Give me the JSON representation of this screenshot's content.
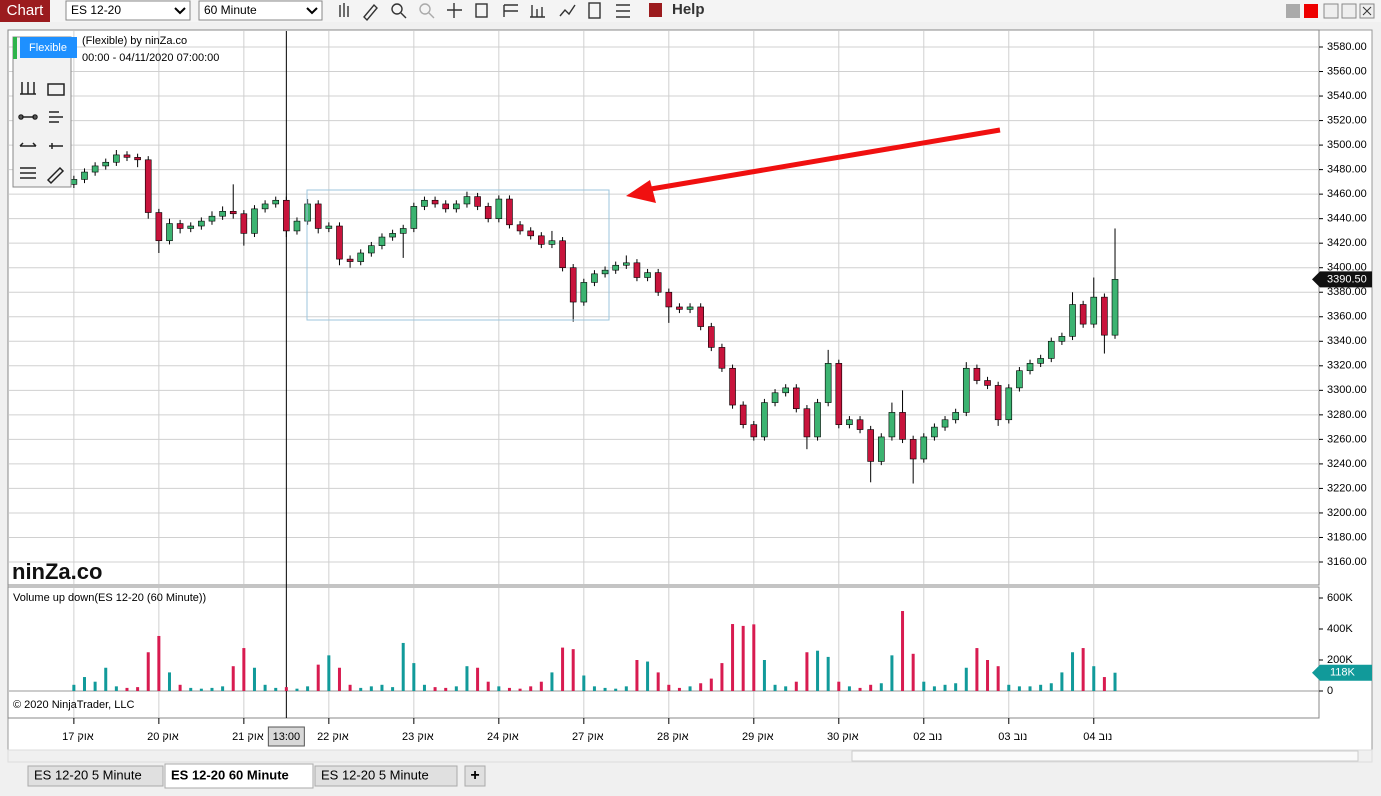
{
  "toolbar": {
    "chart_button": "Chart",
    "instrument": "ES 12-20",
    "interval": "60 Minute",
    "help": "Help"
  },
  "drawing_tools": {
    "button": "Flexible"
  },
  "watermark": "ninZa.co",
  "copyright": "© 2020 NinjaTrader, LLC",
  "tabs": [
    "ES 12-20 5 Minute",
    "ES 12-20 60 Minute",
    "ES 12-20 5 Minute"
  ],
  "new_tab": "+",
  "chart_data": [
    {
      "type": "candlestick",
      "title": "(Flexible) by ninZa.co",
      "subtitle": "00:00 - 04/11/2020 07:00:00",
      "x": [
        0,
        1,
        2,
        3,
        4,
        5,
        6,
        7,
        8,
        9,
        10,
        11,
        12,
        13,
        14,
        15,
        16,
        17,
        18,
        19,
        20,
        21,
        22,
        23,
        24,
        25,
        26,
        27,
        28,
        29,
        30,
        31,
        32,
        33,
        34,
        35,
        36,
        37,
        38,
        39,
        40,
        41,
        42,
        43,
        44,
        45,
        46,
        47,
        48,
        49,
        50,
        51,
        52,
        53,
        54,
        55,
        56,
        57,
        58,
        59,
        60,
        61,
        62,
        63,
        64,
        65,
        66,
        67,
        68,
        69,
        70,
        71,
        72,
        73,
        74,
        75,
        76,
        77,
        78,
        79,
        80,
        81,
        82,
        83,
        84,
        85,
        86,
        87,
        88,
        89,
        90,
        91,
        92,
        93,
        94,
        95,
        96,
        97,
        98
      ],
      "open": [
        3468,
        3472,
        3478,
        3483,
        3486,
        3492,
        3490,
        3488,
        3445,
        3422,
        3436,
        3432,
        3434,
        3438,
        3442,
        3446,
        3444,
        3428,
        3448,
        3452,
        3455,
        3430,
        3438,
        3452,
        3432,
        3434,
        3407,
        3405,
        3412,
        3418,
        3425,
        3428,
        3432,
        3450,
        3455,
        3452,
        3448,
        3452,
        3458,
        3450,
        3440,
        3456,
        3435,
        3430,
        3426,
        3419,
        3422,
        3400,
        3372,
        3388,
        3395,
        3398,
        3402,
        3404,
        3392,
        3396,
        3380,
        3368,
        3366,
        3368,
        3352,
        3335,
        3318,
        3288,
        3272,
        3262,
        3290,
        3298,
        3302,
        3285,
        3262,
        3290,
        3322,
        3272,
        3276,
        3268,
        3242,
        3262,
        3282,
        3260,
        3244,
        3262,
        3270,
        3276,
        3282,
        3318,
        3308,
        3304,
        3276,
        3302,
        3316,
        3322,
        3326,
        3340,
        3344,
        3370,
        3354,
        3376,
        3345
      ],
      "high": [
        3475,
        3481,
        3486,
        3489,
        3496,
        3495,
        3493,
        3491,
        3448,
        3440,
        3439,
        3437,
        3441,
        3446,
        3450,
        3468,
        3447,
        3451,
        3455,
        3458,
        3458,
        3441,
        3456,
        3455,
        3437,
        3437,
        3410,
        3415,
        3421,
        3428,
        3431,
        3435,
        3453,
        3458,
        3458,
        3455,
        3455,
        3462,
        3461,
        3453,
        3459,
        3459,
        3438,
        3433,
        3429,
        3430,
        3425,
        3403,
        3391,
        3398,
        3401,
        3405,
        3410,
        3407,
        3399,
        3399,
        3383,
        3371,
        3371,
        3371,
        3355,
        3338,
        3321,
        3291,
        3275,
        3293,
        3301,
        3305,
        3305,
        3288,
        3293,
        3333,
        3325,
        3279,
        3279,
        3271,
        3265,
        3290,
        3300,
        3263,
        3265,
        3273,
        3279,
        3285,
        3323,
        3321,
        3311,
        3307,
        3305,
        3319,
        3325,
        3329,
        3343,
        3347,
        3380,
        3373,
        3392,
        3379,
        3432
      ],
      "low": [
        3465,
        3469,
        3475,
        3480,
        3483,
        3487,
        3482,
        3440,
        3412,
        3419,
        3428,
        3429,
        3431,
        3435,
        3439,
        3440,
        3418,
        3425,
        3445,
        3449,
        3425,
        3427,
        3435,
        3428,
        3429,
        3402,
        3400,
        3402,
        3409,
        3415,
        3422,
        3408,
        3429,
        3447,
        3449,
        3445,
        3445,
        3449,
        3447,
        3437,
        3437,
        3432,
        3427,
        3423,
        3416,
        3416,
        3397,
        3356,
        3369,
        3385,
        3392,
        3395,
        3399,
        3389,
        3389,
        3377,
        3355,
        3363,
        3363,
        3349,
        3332,
        3315,
        3285,
        3269,
        3259,
        3259,
        3287,
        3295,
        3282,
        3252,
        3259,
        3287,
        3269,
        3269,
        3265,
        3225,
        3239,
        3259,
        3257,
        3224,
        3241,
        3259,
        3267,
        3273,
        3279,
        3305,
        3301,
        3271,
        3273,
        3299,
        3313,
        3319,
        3323,
        3337,
        3341,
        3351,
        3351,
        3330,
        3342
      ],
      "close": [
        3472,
        3478,
        3483,
        3486,
        3492,
        3490,
        3488,
        3445,
        3422,
        3436,
        3432,
        3434,
        3438,
        3442,
        3446,
        3444,
        3428,
        3448,
        3452,
        3455,
        3430,
        3438,
        3452,
        3432,
        3434,
        3407,
        3405,
        3412,
        3418,
        3425,
        3428,
        3432,
        3450,
        3455,
        3452,
        3448,
        3452,
        3458,
        3450,
        3440,
        3456,
        3435,
        3430,
        3426,
        3419,
        3422,
        3400,
        3372,
        3388,
        3395,
        3398,
        3402,
        3404,
        3392,
        3396,
        3380,
        3368,
        3366,
        3368,
        3352,
        3335,
        3318,
        3288,
        3272,
        3262,
        3290,
        3298,
        3302,
        3285,
        3262,
        3290,
        3322,
        3272,
        3276,
        3268,
        3242,
        3262,
        3282,
        3260,
        3244,
        3262,
        3270,
        3276,
        3282,
        3318,
        3308,
        3304,
        3276,
        3302,
        3316,
        3322,
        3326,
        3340,
        3344,
        3370,
        3354,
        3376,
        3345,
        3390.5
      ],
      "up_color": "#3cb371",
      "down_color": "#c8143c",
      "wick_color": "#000000",
      "xlim": [
        -6.2,
        117.2
      ],
      "xticks": [
        {
          "value": 0,
          "label": "17 אוק"
        },
        {
          "value": 8,
          "label": "20 אוק"
        },
        {
          "value": 16,
          "label": "21 אוק"
        },
        {
          "value": 24,
          "label": "22 אוק"
        },
        {
          "value": 32,
          "label": "23 אוק"
        },
        {
          "value": 40,
          "label": "24 אוק"
        },
        {
          "value": 48,
          "label": "27 אוק"
        },
        {
          "value": 56,
          "label": "28 אוק"
        },
        {
          "value": 64,
          "label": "29 אוק"
        },
        {
          "value": 72,
          "label": "30 אוק"
        },
        {
          "value": 80,
          "label": "02 נוב"
        },
        {
          "value": 88,
          "label": "03 נוב"
        },
        {
          "value": 96,
          "label": "04 נוב"
        }
      ],
      "ylim": [
        3141.24,
        3593.86
      ],
      "yticks": [
        {
          "value": 3160,
          "label": "3160.00"
        },
        {
          "value": 3180,
          "label": "3180.00"
        },
        {
          "value": 3200,
          "label": "3200.00"
        },
        {
          "value": 3220,
          "label": "3220.00"
        },
        {
          "value": 3240,
          "label": "3240.00"
        },
        {
          "value": 3260,
          "label": "3260.00"
        },
        {
          "value": 3280,
          "label": "3280.00"
        },
        {
          "value": 3300,
          "label": "3300.00"
        },
        {
          "value": 3320,
          "label": "3320.00"
        },
        {
          "value": 3340,
          "label": "3340.00"
        },
        {
          "value": 3360,
          "label": "3360.00"
        },
        {
          "value": 3380,
          "label": "3380.00"
        },
        {
          "value": 3400,
          "label": "3400.00"
        },
        {
          "value": 3420,
          "label": "3420.00"
        },
        {
          "value": 3440,
          "label": "3440.00"
        },
        {
          "value": 3460,
          "label": "3460.00"
        },
        {
          "value": 3480,
          "label": "3480.00"
        },
        {
          "value": 3500,
          "label": "3500.00"
        },
        {
          "value": 3520,
          "label": "3520.00"
        },
        {
          "value": 3540,
          "label": "3540.00"
        },
        {
          "value": 3560,
          "label": "3560.00"
        },
        {
          "value": 3580,
          "label": "3580.00"
        }
      ],
      "grid": true,
      "last_price": {
        "value": 3390.5,
        "label": "3390.50"
      },
      "crosshair": {
        "value": 20,
        "label": "13:00"
      }
    },
    {
      "type": "bar",
      "title": "Volume up down(ES 12-20 (60 Minute))",
      "values": [
        40000,
        90000,
        60000,
        150000,
        30000,
        20000,
        25000,
        250000,
        355000,
        120000,
        40000,
        20000,
        15000,
        20000,
        30000,
        160000,
        277000,
        150000,
        40000,
        20000,
        25000,
        15000,
        30000,
        170000,
        230000,
        150000,
        40000,
        20000,
        30000,
        40000,
        25000,
        310000,
        180000,
        40000,
        25000,
        20000,
        30000,
        160000,
        150000,
        60000,
        30000,
        20000,
        15000,
        30000,
        60000,
        120000,
        280000,
        270000,
        100000,
        30000,
        20000,
        15000,
        30000,
        200000,
        190000,
        120000,
        40000,
        20000,
        30000,
        50000,
        80000,
        180000,
        432000,
        420000,
        430000,
        200000,
        40000,
        30000,
        60000,
        250000,
        260000,
        220000,
        60000,
        30000,
        20000,
        40000,
        50000,
        230000,
        516000,
        240000,
        60000,
        30000,
        40000,
        50000,
        150000,
        277000,
        200000,
        160000,
        40000,
        30000,
        30000,
        40000,
        50000,
        120000,
        250000,
        277000,
        160000,
        90000,
        118000
      ],
      "up_color": "#119a9a",
      "down_color": "#d81b50",
      "ylim": [
        -174194,
        670968
      ],
      "yticks": [
        {
          "value": 0,
          "label": "0"
        },
        {
          "value": 200000,
          "label": "200K"
        },
        {
          "value": 400000,
          "label": "400K"
        },
        {
          "value": 600000,
          "label": "600K"
        }
      ],
      "last_value": {
        "value": 118000,
        "label": "118K"
      }
    }
  ]
}
